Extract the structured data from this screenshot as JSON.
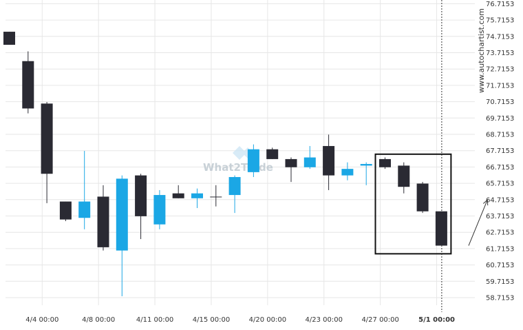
{
  "watermark": "www.autochartist.com",
  "logo_text": "What2Trade",
  "chart_data": {
    "type": "candlestick",
    "colors": {
      "up": "#1ba7e5",
      "down": "#2a2a33",
      "grid": "#e6e6e6",
      "box": "#111111"
    },
    "y_ticks": [
      "76.7153",
      "75.7153",
      "74.7153",
      "73.7153",
      "72.7153",
      "71.7153",
      "70.7153",
      "69.7153",
      "68.7153",
      "67.7153",
      "66.7153",
      "65.7153",
      "64.7153",
      "63.7153",
      "62.7153",
      "61.7153",
      "60.7153",
      "59.7153",
      "58.7153"
    ],
    "ylim": [
      58.3,
      76.9
    ],
    "x_ticks": [
      {
        "label": "4/4 00:00",
        "index": 1.75
      },
      {
        "label": "4/8 00:00",
        "index": 4.75
      },
      {
        "label": "4/11 00:00",
        "index": 7.75
      },
      {
        "label": "4/15 00:00",
        "index": 10.75
      },
      {
        "label": "4/20 00:00",
        "index": 13.75
      },
      {
        "label": "4/23 00:00",
        "index": 16.75
      },
      {
        "label": "4/27 00:00",
        "index": 19.75
      },
      {
        "label": "5/1 00:00",
        "index": 22.75,
        "bold": true
      }
    ],
    "candles": [
      {
        "open": 75.0,
        "high": 75.0,
        "low": 74.2,
        "close": 74.2
      },
      {
        "open": 73.2,
        "high": 73.8,
        "low": 70.0,
        "close": 70.3
      },
      {
        "open": 70.6,
        "high": 70.7,
        "low": 64.5,
        "close": 66.3
      },
      {
        "open": 64.6,
        "high": 64.6,
        "low": 63.4,
        "close": 63.5
      },
      {
        "open": 63.6,
        "high": 67.7,
        "low": 62.9,
        "close": 64.6
      },
      {
        "open": 64.9,
        "high": 65.6,
        "low": 61.6,
        "close": 61.8
      },
      {
        "open": 61.6,
        "high": 66.2,
        "low": 58.8,
        "close": 66.0
      },
      {
        "open": 66.2,
        "high": 66.3,
        "low": 62.3,
        "close": 63.7
      },
      {
        "open": 63.2,
        "high": 65.3,
        "low": 62.9,
        "close": 65.0
      },
      {
        "open": 65.1,
        "high": 65.6,
        "low": 64.8,
        "close": 64.8
      },
      {
        "open": 64.8,
        "high": 65.4,
        "low": 64.2,
        "close": 65.1
      },
      {
        "open": 64.9,
        "high": 65.6,
        "low": 64.3,
        "close": 64.9
      },
      {
        "open": 65.0,
        "high": 66.2,
        "low": 63.9,
        "close": 66.1
      },
      {
        "open": 66.4,
        "high": 68.1,
        "low": 66.1,
        "close": 67.8
      },
      {
        "open": 67.8,
        "high": 67.9,
        "low": 67.2,
        "close": 67.2
      },
      {
        "open": 67.2,
        "high": 67.3,
        "low": 65.8,
        "close": 66.7
      },
      {
        "open": 66.7,
        "high": 68.0,
        "low": 66.6,
        "close": 67.3
      },
      {
        "open": 68.0,
        "high": 68.7,
        "low": 65.3,
        "close": 66.2
      },
      {
        "open": 66.2,
        "high": 67.0,
        "low": 65.9,
        "close": 66.6
      },
      {
        "open": 66.8,
        "high": 67.0,
        "low": 65.6,
        "close": 66.9
      },
      {
        "open": 67.2,
        "high": 67.3,
        "low": 66.6,
        "close": 66.7
      },
      {
        "open": 66.8,
        "high": 67.0,
        "low": 65.1,
        "close": 65.5
      },
      {
        "open": 65.7,
        "high": 65.8,
        "low": 63.9,
        "close": 64.0
      },
      {
        "open": 64.0,
        "high": 64.0,
        "low": 61.9,
        "close": 61.9
      }
    ],
    "highlight_box": {
      "from_index": 20,
      "to_index": 23,
      "y_top": 67.5,
      "y_bottom": 61.4
    },
    "projection_arrow": {
      "from": [
        24.45,
        61.9
      ],
      "to": [
        25.45,
        64.7
      ]
    },
    "current_time_marker_index": 23
  }
}
